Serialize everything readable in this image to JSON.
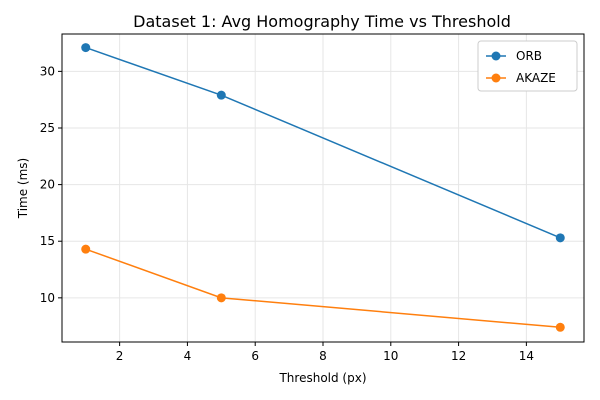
{
  "chart_data": {
    "type": "line",
    "title": "Dataset 1: Avg Homography Time vs Threshold",
    "xlabel": "Threshold (px)",
    "ylabel": "Time (ms)",
    "x": [
      1,
      5,
      15
    ],
    "xlim": [
      0.3,
      15.7
    ],
    "ylim": [
      6.1,
      33.3
    ],
    "xticks": [
      2,
      4,
      6,
      8,
      10,
      12,
      14
    ],
    "yticks": [
      10,
      15,
      20,
      25,
      30
    ],
    "grid": true,
    "legend_position": "top-right",
    "series": [
      {
        "name": "ORB",
        "color": "#1f77b4",
        "values": [
          32.1,
          27.9,
          15.3
        ]
      },
      {
        "name": "AKAZE",
        "color": "#ff7f0e",
        "values": [
          14.3,
          10.0,
          7.4
        ]
      }
    ]
  }
}
